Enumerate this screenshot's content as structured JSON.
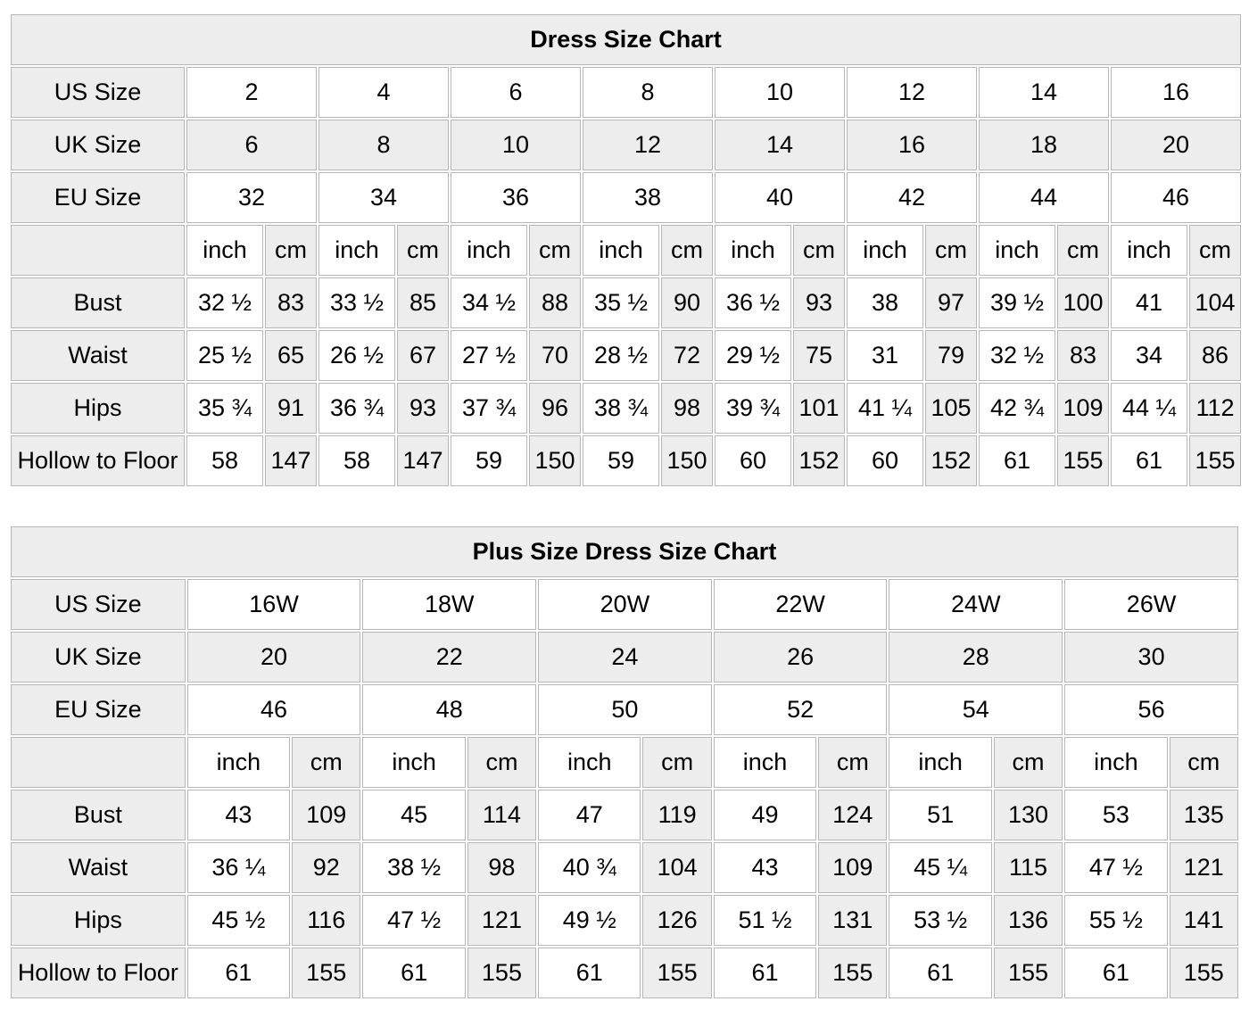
{
  "units": {
    "inch": "inch",
    "cm": "cm"
  },
  "colors": {
    "cell_gray": "#ededed",
    "cell_white": "#ffffff",
    "grid_border": "#b7b7b7",
    "text": "#000000"
  },
  "tables": [
    {
      "title": "Dress Size Chart",
      "size_rows": [
        {
          "label": "US Size",
          "values": [
            "2",
            "4",
            "6",
            "8",
            "10",
            "12",
            "14",
            "16"
          ]
        },
        {
          "label": "UK Size",
          "values": [
            "6",
            "8",
            "10",
            "12",
            "14",
            "16",
            "18",
            "20"
          ]
        },
        {
          "label": "EU Size",
          "values": [
            "32",
            "34",
            "36",
            "38",
            "40",
            "42",
            "44",
            "46"
          ]
        }
      ],
      "measurement_rows": [
        {
          "label": "Bust",
          "values": [
            [
              "32 ½",
              "83"
            ],
            [
              "33 ½",
              "85"
            ],
            [
              "34 ½",
              "88"
            ],
            [
              "35 ½",
              "90"
            ],
            [
              "36 ½",
              "93"
            ],
            [
              "38",
              "97"
            ],
            [
              "39 ½",
              "100"
            ],
            [
              "41",
              "104"
            ]
          ]
        },
        {
          "label": "Waist",
          "values": [
            [
              "25 ½",
              "65"
            ],
            [
              "26 ½",
              "67"
            ],
            [
              "27 ½",
              "70"
            ],
            [
              "28 ½",
              "72"
            ],
            [
              "29 ½",
              "75"
            ],
            [
              "31",
              "79"
            ],
            [
              "32 ½",
              "83"
            ],
            [
              "34",
              "86"
            ]
          ]
        },
        {
          "label": "Hips",
          "values": [
            [
              "35 ¾",
              "91"
            ],
            [
              "36 ¾",
              "93"
            ],
            [
              "37 ¾",
              "96"
            ],
            [
              "38 ¾",
              "98"
            ],
            [
              "39 ¾",
              "101"
            ],
            [
              "41 ¼",
              "105"
            ],
            [
              "42 ¾",
              "109"
            ],
            [
              "44 ¼",
              "112"
            ]
          ]
        },
        {
          "label": "Hollow to Floor",
          "values": [
            [
              "58",
              "147"
            ],
            [
              "58",
              "147"
            ],
            [
              "59",
              "150"
            ],
            [
              "59",
              "150"
            ],
            [
              "60",
              "152"
            ],
            [
              "60",
              "152"
            ],
            [
              "61",
              "155"
            ],
            [
              "61",
              "155"
            ]
          ]
        }
      ]
    },
    {
      "title": "Plus Size Dress Size Chart",
      "size_rows": [
        {
          "label": "US Size",
          "values": [
            "16W",
            "18W",
            "20W",
            "22W",
            "24W",
            "26W"
          ]
        },
        {
          "label": "UK Size",
          "values": [
            "20",
            "22",
            "24",
            "26",
            "28",
            "30"
          ]
        },
        {
          "label": "EU Size",
          "values": [
            "46",
            "48",
            "50",
            "52",
            "54",
            "56"
          ]
        }
      ],
      "measurement_rows": [
        {
          "label": "Bust",
          "values": [
            [
              "43",
              "109"
            ],
            [
              "45",
              "114"
            ],
            [
              "47",
              "119"
            ],
            [
              "49",
              "124"
            ],
            [
              "51",
              "130"
            ],
            [
              "53",
              "135"
            ]
          ]
        },
        {
          "label": "Waist",
          "values": [
            [
              "36 ¼",
              "92"
            ],
            [
              "38 ½",
              "98"
            ],
            [
              "40 ¾",
              "104"
            ],
            [
              "43",
              "109"
            ],
            [
              "45 ¼",
              "115"
            ],
            [
              "47 ½",
              "121"
            ]
          ]
        },
        {
          "label": "Hips",
          "values": [
            [
              "45 ½",
              "116"
            ],
            [
              "47 ½",
              "121"
            ],
            [
              "49 ½",
              "126"
            ],
            [
              "51 ½",
              "131"
            ],
            [
              "53 ½",
              "136"
            ],
            [
              "55 ½",
              "141"
            ]
          ]
        },
        {
          "label": "Hollow to Floor",
          "values": [
            [
              "61",
              "155"
            ],
            [
              "61",
              "155"
            ],
            [
              "61",
              "155"
            ],
            [
              "61",
              "155"
            ],
            [
              "61",
              "155"
            ],
            [
              "61",
              "155"
            ]
          ]
        }
      ]
    }
  ]
}
